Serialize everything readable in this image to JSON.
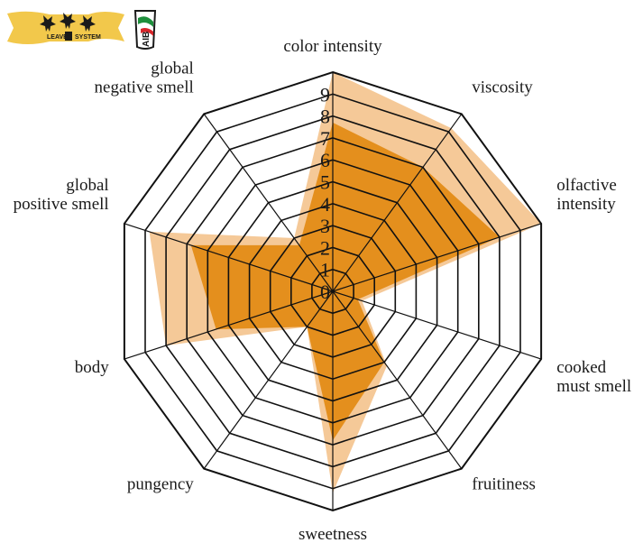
{
  "logos": {
    "leaves_system": {
      "left_word": "LEAVES",
      "right_word": "SYSTEM",
      "banner_color": "#f2c84b"
    },
    "aib": {
      "text": "AIB"
    }
  },
  "chart_data": {
    "type": "radar",
    "title": "",
    "axes": [
      "color intensity",
      "viscosity",
      "olfactive intensity",
      "cooked must smell",
      "fruitiness",
      "sweetness",
      "pungency",
      "body",
      "global positive smell",
      "global negative smell"
    ],
    "axis_label_lines": [
      [
        "color intensity"
      ],
      [
        "viscosity"
      ],
      [
        "olfactive",
        "intensity"
      ],
      [
        "cooked",
        "must smell"
      ],
      [
        "fruitiness"
      ],
      [
        "sweetness"
      ],
      [
        "pungency"
      ],
      [
        "body"
      ],
      [
        "global",
        "positive smell"
      ],
      [
        "global",
        "negative smell"
      ]
    ],
    "ticks": [
      0,
      1,
      2,
      3,
      4,
      5,
      6,
      7,
      8,
      9
    ],
    "rmax": 10,
    "grid": true,
    "series": [
      {
        "values": [
          10,
          9.2,
          10,
          1.4,
          4.2,
          9.2,
          2,
          8,
          8.8,
          3
        ],
        "color": "#f5c998"
      },
      {
        "values": [
          7.7,
          7,
          8,
          1.2,
          4,
          6.8,
          2,
          5.6,
          6.8,
          2.6
        ],
        "color": "#e48f1d"
      }
    ]
  }
}
